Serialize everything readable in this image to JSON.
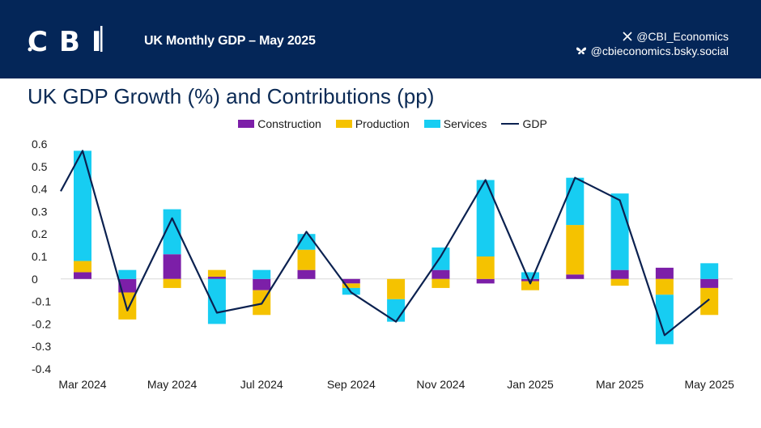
{
  "header": {
    "logo_text": "CBI",
    "title": "UK Monthly GDP – May 2025",
    "social": [
      {
        "icon": "x-icon",
        "handle": "@CBI_Economics"
      },
      {
        "icon": "butterfly-icon",
        "handle": "@cbieconomics.bsky.social"
      }
    ]
  },
  "colors": {
    "header_bg": "#042658",
    "construction": "#7c1fa8",
    "production": "#f5c200",
    "services": "#17cdf2",
    "gdp": "#0b2150"
  },
  "chart_data": {
    "type": "bar",
    "title": "UK GDP Growth (%) and Contributions (pp)",
    "stacked": true,
    "categories": [
      "Mar 2024",
      "Apr 2024",
      "May 2024",
      "Jun 2024",
      "Jul 2024",
      "Aug 2024",
      "Sep 2024",
      "Oct 2024",
      "Nov 2024",
      "Dec 2024",
      "Jan 2025",
      "Feb 2025",
      "Mar 2025",
      "Apr 2025",
      "May 2025"
    ],
    "x_tick_labels": [
      "Mar 2024",
      "",
      "May 2024",
      "",
      "Jul 2024",
      "",
      "Sep 2024",
      "",
      "Nov 2024",
      "",
      "Jan 2025",
      "",
      "Mar 2025",
      "",
      "May 2025"
    ],
    "series": [
      {
        "name": "Construction",
        "kind": "bar",
        "values": [
          0.03,
          -0.06,
          0.11,
          0.01,
          -0.05,
          0.04,
          -0.02,
          0.0,
          0.04,
          -0.02,
          -0.01,
          0.02,
          0.04,
          0.05,
          -0.04
        ]
      },
      {
        "name": "Production",
        "kind": "bar",
        "values": [
          0.05,
          -0.12,
          -0.04,
          0.03,
          -0.11,
          0.09,
          -0.02,
          -0.09,
          -0.04,
          0.1,
          -0.04,
          0.22,
          -0.03,
          -0.07,
          -0.12
        ]
      },
      {
        "name": "Services",
        "kind": "bar",
        "values": [
          0.49,
          0.04,
          0.2,
          -0.2,
          0.04,
          0.07,
          -0.03,
          -0.1,
          0.1,
          0.34,
          0.03,
          0.21,
          0.34,
          -0.22,
          0.07
        ]
      },
      {
        "name": "GDP",
        "kind": "line",
        "values": [
          0.57,
          -0.14,
          0.27,
          -0.15,
          -0.11,
          0.21,
          -0.06,
          -0.19,
          0.1,
          0.44,
          -0.02,
          0.45,
          0.35,
          -0.25,
          -0.09
        ],
        "start_value": 0.39
      }
    ],
    "xlabel": "",
    "ylabel": "",
    "ylim": [
      -0.4,
      0.6
    ],
    "yticks": [
      -0.4,
      -0.3,
      -0.2,
      -0.1,
      0,
      0.1,
      0.2,
      0.3,
      0.4,
      0.5,
      0.6
    ],
    "ytick_labels": [
      "-0.4",
      "-0.3",
      "-0.2",
      "-0.1",
      "0",
      "0.1",
      "0.2",
      "0.3",
      "0.4",
      "0.5",
      "0.6"
    ],
    "legend_position": "top-center"
  }
}
